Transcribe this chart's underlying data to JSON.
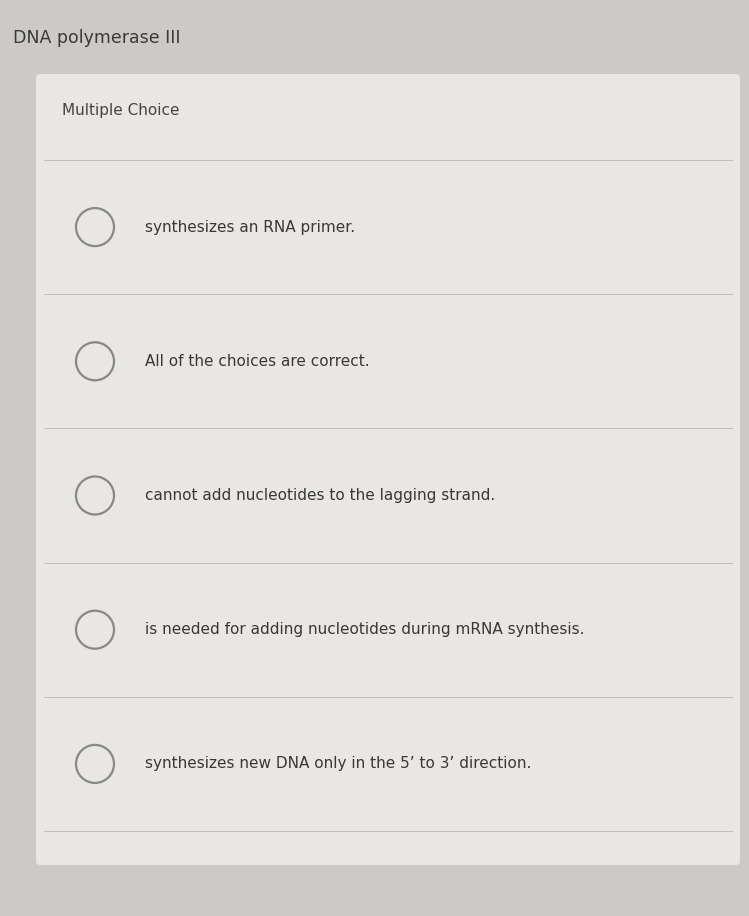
{
  "title": "DNA polymerase III",
  "title_fontsize": 12.5,
  "title_color": "#3a3a3a",
  "subtitle": "Multiple Choice",
  "subtitle_fontsize": 11,
  "subtitle_color": "#444444",
  "bg_color_outer": "#cccac7",
  "bg_color_inner": "#e9e7e4",
  "choices": [
    "synthesizes an RNA primer.",
    "All of the choices are correct.",
    "cannot add nucleotides to the lagging strand.",
    "is needed for adding nucleotides during mRNA synthesis.",
    "synthesizes new DNA only in the 5’ to 3’ direction."
  ],
  "choice_fontsize": 11,
  "choice_color": "#383838",
  "circle_edge_color": "#888888",
  "circle_linewidth": 1.6,
  "divider_color": "#c0bebb",
  "divider_linewidth": 0.7
}
